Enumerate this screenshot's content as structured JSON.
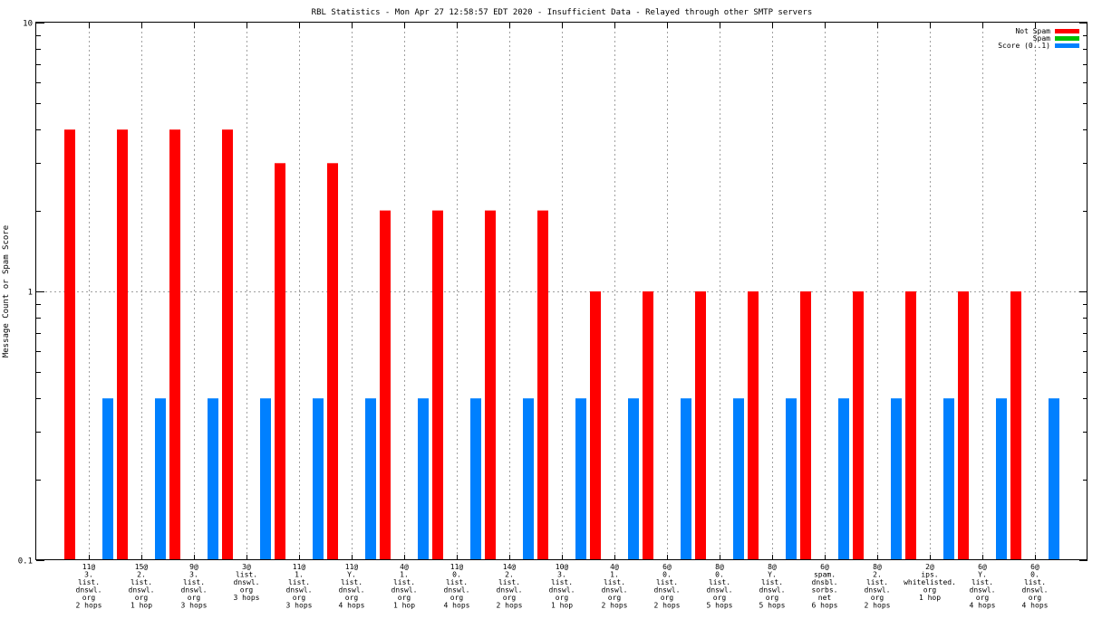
{
  "chart_data": {
    "type": "bar",
    "title": "RBL Statistics - Mon Apr 27 12:58:57 EDT 2020 - Insufficient Data - Relayed through other SMTP servers",
    "xlabel": "",
    "ylabel": "Message Count or Spam Score",
    "yscale": "log",
    "ylim": [
      0.1,
      10
    ],
    "ytick_labels": [
      "0.1",
      "1",
      "10"
    ],
    "ytick_values": [
      0.1,
      1,
      10
    ],
    "grid": true,
    "legend_position": "top-right",
    "categories": [
      [
        "11@",
        "3.",
        "list.",
        "dnswl.",
        "org",
        "2 hops"
      ],
      [
        "15@",
        "2.",
        "list.",
        "dnswl.",
        "org",
        "1 hop"
      ],
      [
        "9@",
        "3.",
        "list.",
        "dnswl.",
        "org",
        "3 hops"
      ],
      [
        "3@",
        "list.",
        "dnswl.",
        "org",
        "3 hops"
      ],
      [
        "11@",
        "1.",
        "list.",
        "dnswl.",
        "org",
        "3 hops"
      ],
      [
        "11@",
        "Y.",
        "list.",
        "dnswl.",
        "org",
        "4 hops"
      ],
      [
        "4@",
        "1.",
        "list.",
        "dnswl.",
        "org",
        "1 hop"
      ],
      [
        "11@",
        "0.",
        "list.",
        "dnswl.",
        "org",
        "4 hops"
      ],
      [
        "14@",
        "2.",
        "list.",
        "dnswl.",
        "org",
        "2 hops"
      ],
      [
        "10@",
        "3.",
        "list.",
        "dnswl.",
        "org",
        "1 hop"
      ],
      [
        "4@",
        "1.",
        "list.",
        "dnswl.",
        "org",
        "2 hops"
      ],
      [
        "6@",
        "0.",
        "list.",
        "dnswl.",
        "org",
        "2 hops"
      ],
      [
        "8@",
        "0.",
        "list.",
        "dnswl.",
        "org",
        "5 hops"
      ],
      [
        "8@",
        "Y.",
        "list.",
        "dnswl.",
        "org",
        "5 hops"
      ],
      [
        "6@",
        "spam.",
        "dnsbl.",
        "sorbs.",
        "net",
        "6 hops"
      ],
      [
        "8@",
        "2.",
        "list.",
        "dnswl.",
        "org",
        "2 hops"
      ],
      [
        "2@",
        "ips.",
        "whitelisted.",
        "org",
        "1 hop"
      ],
      [
        "6@",
        "Y.",
        "list.",
        "dnswl.",
        "org",
        "4 hops"
      ],
      [
        "6@",
        "0.",
        "list.",
        "dnswl.",
        "org",
        "4 hops"
      ]
    ],
    "series": [
      {
        "name": "Not Spam",
        "color": "#ff0000",
        "values": [
          4,
          4,
          4,
          4,
          3,
          3,
          2,
          2,
          2,
          2,
          1,
          1,
          1,
          1,
          1,
          1,
          1,
          1,
          1
        ]
      },
      {
        "name": "Spam",
        "color": "#00c000",
        "values": [
          0,
          0,
          0,
          0,
          0,
          0,
          0,
          0,
          0,
          0,
          0,
          0,
          0,
          0,
          0,
          0,
          0,
          0,
          0
        ]
      },
      {
        "name": "Score (0..1)",
        "color": "#0080ff",
        "values": [
          0.4,
          0.4,
          0.4,
          0.4,
          0.4,
          0.4,
          0.4,
          0.4,
          0.4,
          0.4,
          0.4,
          0.4,
          0.4,
          0.4,
          0.4,
          0.4,
          0.4,
          0.4,
          0.4
        ]
      }
    ]
  }
}
